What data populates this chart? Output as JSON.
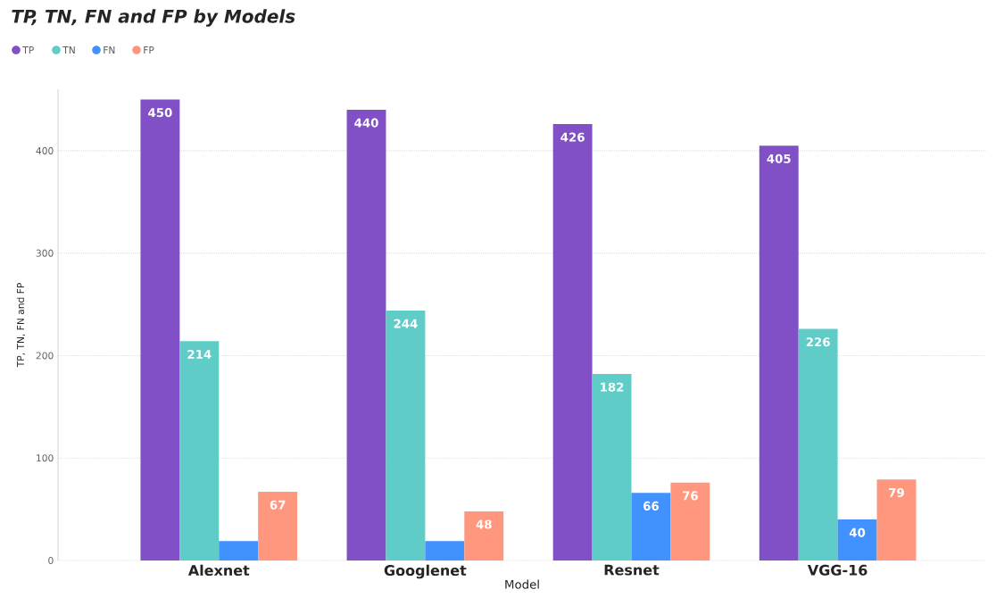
{
  "chart_data": {
    "type": "bar",
    "title": "TP, TN, FN and FP by Models",
    "xlabel": "Model",
    "ylabel": "TP, TN, FN and FP",
    "categories": [
      "Alexnet",
      "Googlenet",
      "Resnet",
      "VGG-16"
    ],
    "series": [
      {
        "name": "TP",
        "color": "#8150c6",
        "values": [
          450,
          440,
          426,
          405
        ],
        "value_labels": [
          "450",
          "440",
          "426",
          "405"
        ]
      },
      {
        "name": "TN",
        "color": "#5fccc8",
        "values": [
          214,
          244,
          182,
          226
        ],
        "value_labels": [
          "214",
          "244",
          "182",
          "226"
        ]
      },
      {
        "name": "FN",
        "color": "#4191ff",
        "values": [
          19,
          19,
          66,
          40
        ],
        "value_labels": [
          null,
          null,
          "66",
          "40"
        ]
      },
      {
        "name": "FP",
        "color": "#ff977e",
        "values": [
          67,
          48,
          76,
          79
        ],
        "value_labels": [
          "67",
          "48",
          "76",
          "79"
        ]
      }
    ],
    "ylim": [
      0,
      460
    ],
    "yticks": [
      0,
      100,
      200,
      300,
      400
    ],
    "grid": "y",
    "legend": "top left"
  }
}
